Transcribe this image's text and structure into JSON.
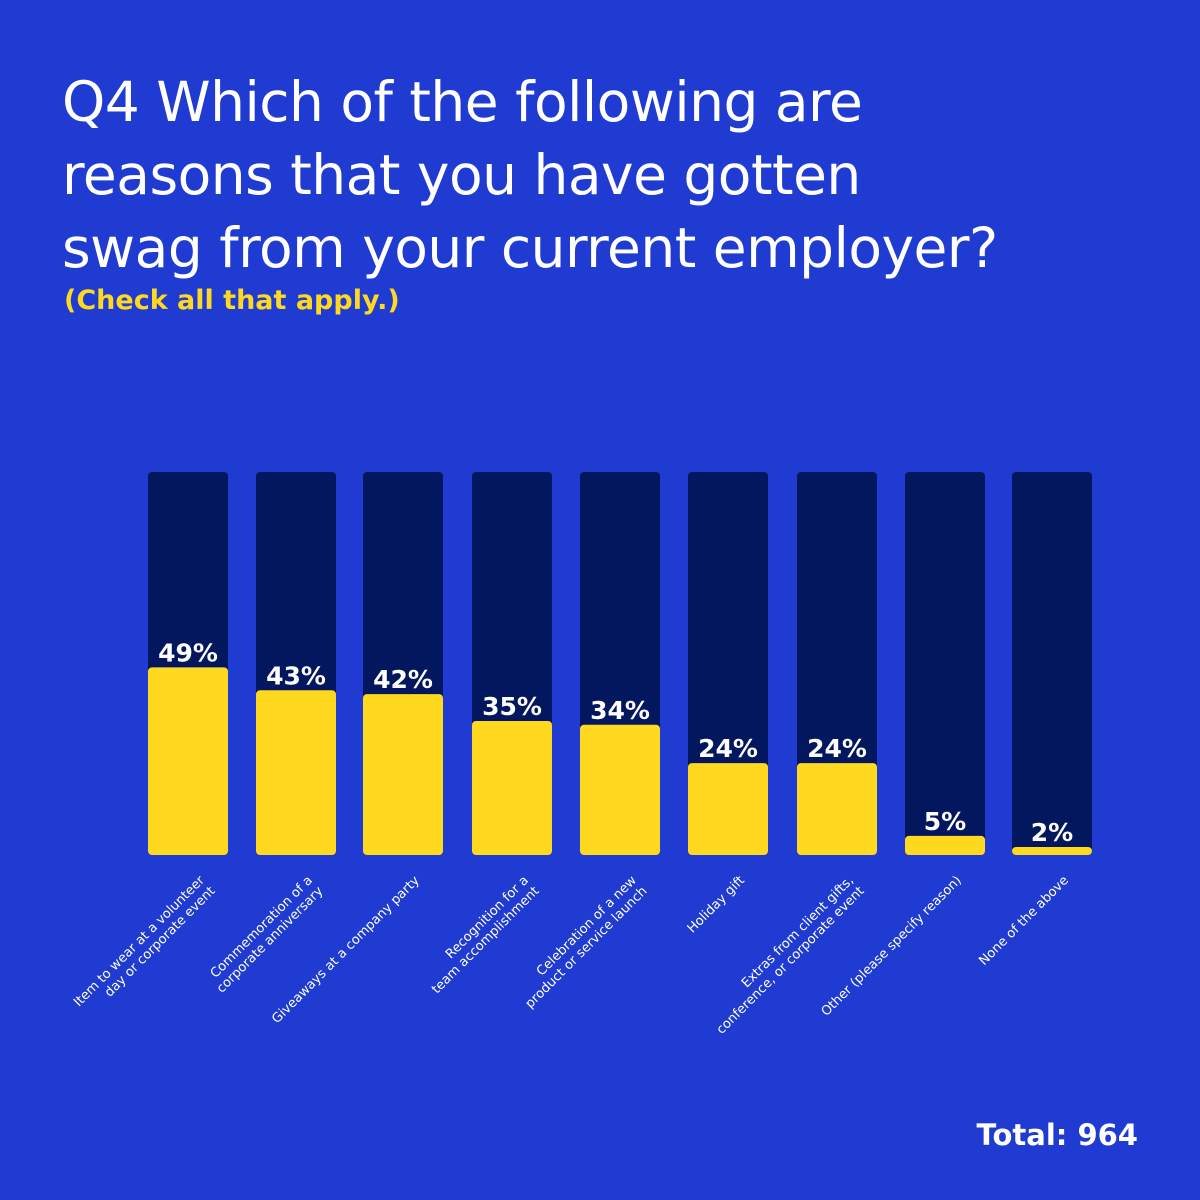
{
  "chart_data": {
    "type": "bar",
    "title_lines": [
      "Q4 Which of the following are",
      "reasons that you have gotten",
      "swag from your current employer?"
    ],
    "subtitle": "(Check all that apply.)",
    "categories": [
      [
        "Item to wear at a volunteer",
        "day or corporate event"
      ],
      [
        "Commemoration of a",
        "corporate anniversary"
      ],
      [
        "Giveaways at a company party"
      ],
      [
        "Recognition for a",
        "team accomplishment"
      ],
      [
        "Celebration of a new",
        "product or service launch"
      ],
      [
        "Holiday gift"
      ],
      [
        "Extras from client gifts,",
        "conference, or corporate event"
      ],
      [
        "Other (please specify reason)"
      ],
      [
        "None of the above"
      ]
    ],
    "values": [
      49,
      43,
      42,
      35,
      34,
      24,
      24,
      5,
      2
    ],
    "value_labels": [
      "49%",
      "43%",
      "42%",
      "35%",
      "34%",
      "24%",
      "24%",
      "5%",
      "2%"
    ],
    "ylim": [
      0,
      100
    ],
    "grid": false,
    "total": "Total: 964",
    "colors": {
      "background": "#1f3bd2",
      "bar_track": "#03175f",
      "bar_fill": "#ffd91f",
      "text": "#ffffff",
      "accent_text": "#ffd91f"
    }
  }
}
